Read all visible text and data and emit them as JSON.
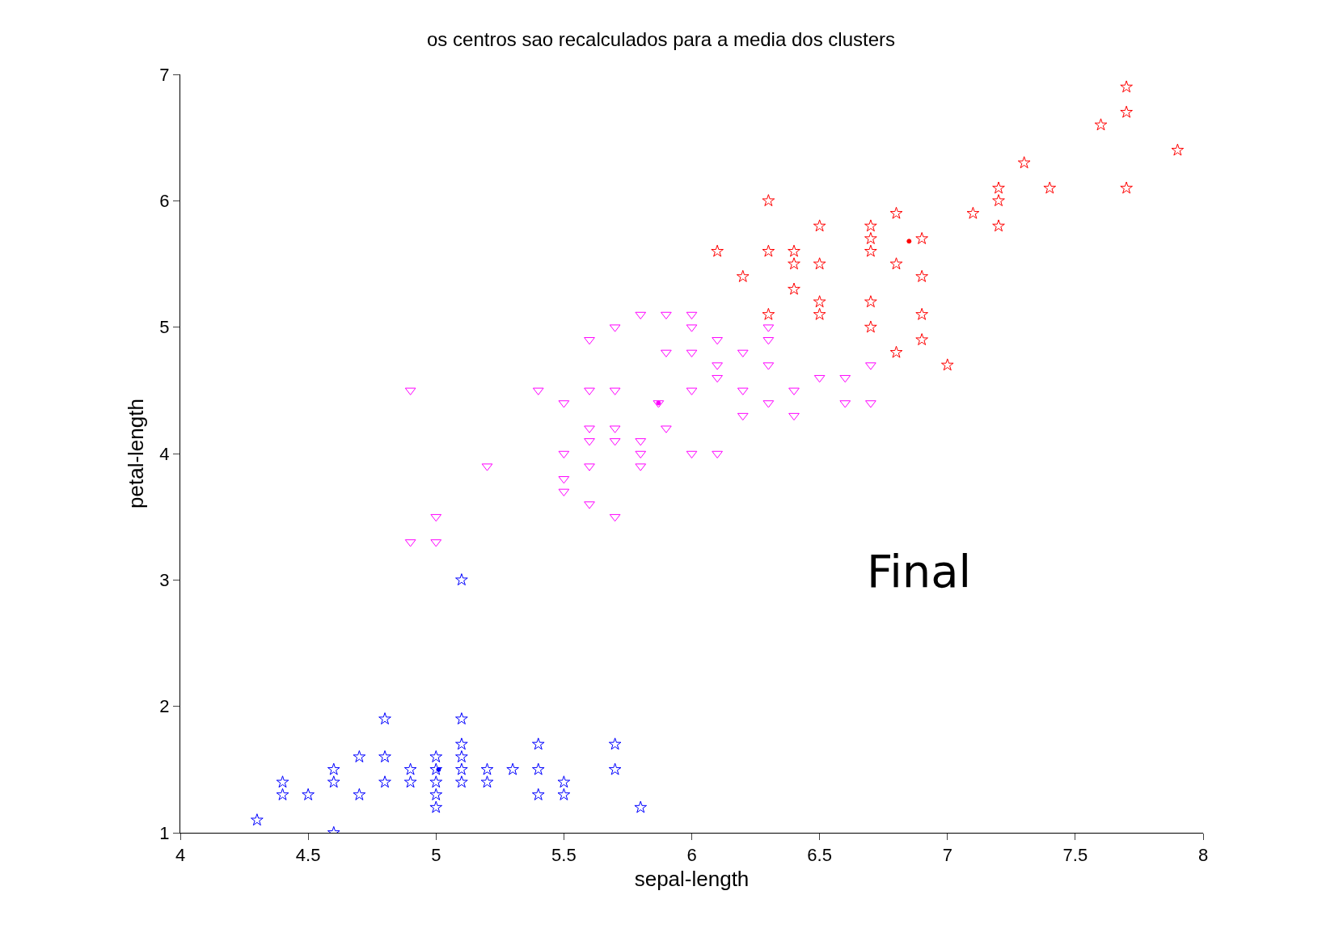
{
  "chart_data": {
    "type": "scatter",
    "title": "os centros sao recalculados para a media dos clusters",
    "xlabel": "sepal-length",
    "ylabel": "petal-length",
    "annotations": [
      "Final"
    ],
    "xlim": [
      4,
      8
    ],
    "xticks": [
      4,
      4.5,
      5,
      5.5,
      6,
      6.5,
      7,
      7.5,
      8
    ],
    "ylim": [
      1,
      7
    ],
    "yticks": [
      1,
      2,
      3,
      4,
      5,
      6,
      7
    ],
    "series": [
      {
        "color": "#0000ff",
        "marker": "star",
        "x": [
          4.3,
          4.4,
          4.4,
          4.5,
          4.6,
          4.6,
          4.6,
          4.7,
          4.7,
          4.8,
          4.8,
          4.8,
          4.9,
          4.9,
          5.0,
          5.0,
          5.0,
          5.0,
          5.0,
          5.1,
          5.1,
          5.1,
          5.1,
          5.1,
          5.1,
          5.2,
          5.2,
          5.3,
          5.4,
          5.4,
          5.4,
          5.5,
          5.5,
          5.7,
          5.7,
          5.8
        ],
        "values": [
          1.1,
          1.4,
          1.3,
          1.3,
          1.5,
          1.4,
          1.0,
          1.6,
          1.3,
          1.9,
          1.6,
          1.4,
          1.5,
          1.4,
          1.6,
          1.5,
          1.4,
          1.3,
          1.2,
          1.9,
          1.7,
          1.6,
          1.5,
          1.4,
          3.0,
          1.5,
          1.4,
          1.5,
          1.7,
          1.5,
          1.3,
          1.4,
          1.3,
          1.7,
          1.5,
          1.2
        ]
      },
      {
        "color": "#ff00ff",
        "marker": "triangle",
        "x": [
          4.9,
          4.9,
          5.0,
          5.0,
          5.2,
          5.4,
          5.5,
          5.5,
          5.5,
          5.5,
          5.6,
          5.6,
          5.6,
          5.6,
          5.6,
          5.6,
          5.7,
          5.7,
          5.7,
          5.7,
          5.7,
          5.8,
          5.8,
          5.8,
          5.8,
          5.9,
          5.9,
          5.9,
          6.0,
          6.0,
          6.0,
          6.0,
          6.0,
          6.1,
          6.1,
          6.1,
          6.1,
          6.2,
          6.2,
          6.2,
          6.3,
          6.3,
          6.3,
          6.3,
          6.4,
          6.4,
          6.5,
          6.6,
          6.6,
          6.7,
          6.7,
          5.87
        ],
        "values": [
          4.5,
          3.3,
          3.5,
          3.3,
          3.9,
          4.5,
          4.4,
          4.0,
          3.8,
          3.7,
          4.9,
          4.5,
          4.2,
          4.1,
          3.9,
          3.6,
          5.0,
          4.5,
          4.2,
          4.1,
          3.5,
          5.1,
          4.1,
          4.0,
          3.9,
          5.1,
          4.8,
          4.2,
          5.1,
          5.0,
          4.8,
          4.5,
          4.0,
          4.9,
          4.7,
          4.6,
          4.0,
          4.8,
          4.5,
          4.3,
          5.0,
          4.9,
          4.7,
          4.4,
          4.5,
          4.3,
          4.6,
          4.6,
          4.4,
          4.7,
          4.4,
          4.4
        ]
      },
      {
        "color": "#ff0000",
        "marker": "star",
        "x": [
          6.1,
          6.2,
          6.3,
          6.3,
          6.3,
          6.4,
          6.4,
          6.4,
          6.5,
          6.5,
          6.5,
          6.5,
          6.7,
          6.7,
          6.7,
          6.7,
          6.7,
          6.8,
          6.8,
          6.8,
          6.9,
          6.9,
          6.9,
          6.9,
          7.0,
          7.1,
          7.2,
          7.2,
          7.2,
          7.3,
          7.4,
          7.6,
          7.7,
          7.7,
          7.7,
          7.9
        ],
        "values": [
          5.6,
          5.4,
          6.0,
          5.6,
          5.1,
          5.6,
          5.5,
          5.3,
          5.8,
          5.5,
          5.2,
          5.1,
          5.8,
          5.7,
          5.6,
          5.2,
          5.0,
          5.9,
          5.5,
          4.8,
          5.7,
          5.4,
          5.1,
          4.9,
          4.7,
          5.9,
          6.1,
          6.0,
          5.8,
          6.3,
          6.1,
          6.6,
          6.9,
          6.7,
          6.1,
          6.4
        ]
      },
      {
        "colors": [
          "#0000ff",
          "#ff00ff",
          "#ff0000"
        ],
        "marker": "circle",
        "x": [
          5.01,
          5.87,
          6.85
        ],
        "values": [
          1.5,
          4.4,
          5.68
        ]
      }
    ]
  }
}
